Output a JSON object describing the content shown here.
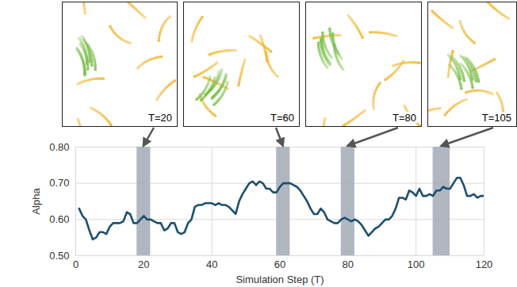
{
  "chart_data": {
    "type": "line",
    "x_label": "Simulation Step (T)",
    "y_label": "Alpha",
    "color": "#1d4f6e",
    "grid": true,
    "xlim": [
      0,
      120
    ],
    "xticks": [
      0,
      20,
      40,
      60,
      80,
      100,
      120
    ],
    "ylim": [
      0.5,
      0.8
    ],
    "yticks": [
      0.5,
      0.6,
      0.7,
      0.8
    ],
    "x": [
      1,
      2,
      3,
      4,
      5,
      6,
      7,
      8,
      9,
      10,
      11,
      12,
      13,
      14,
      15,
      16,
      17,
      18,
      19,
      20,
      21,
      22,
      23,
      24,
      25,
      26,
      27,
      28,
      29,
      30,
      31,
      32,
      33,
      34,
      35,
      36,
      37,
      38,
      39,
      40,
      41,
      42,
      43,
      44,
      45,
      46,
      47,
      48,
      49,
      50,
      51,
      52,
      53,
      54,
      55,
      56,
      57,
      58,
      59,
      60,
      61,
      62,
      63,
      64,
      65,
      66,
      67,
      68,
      69,
      70,
      71,
      72,
      73,
      74,
      75,
      76,
      77,
      78,
      79,
      80,
      81,
      82,
      83,
      84,
      85,
      86,
      87,
      88,
      89,
      90,
      91,
      92,
      93,
      94,
      95,
      96,
      97,
      98,
      99,
      100,
      101,
      102,
      103,
      104,
      105,
      106,
      107,
      108,
      109,
      110,
      111,
      112,
      113,
      114,
      115,
      116,
      117,
      118,
      119,
      120
    ],
    "values": [
      0.63,
      0.61,
      0.6,
      0.57,
      0.545,
      0.55,
      0.565,
      0.565,
      0.56,
      0.58,
      0.59,
      0.59,
      0.59,
      0.595,
      0.62,
      0.615,
      0.59,
      0.59,
      0.6,
      0.61,
      0.6,
      0.6,
      0.595,
      0.59,
      0.59,
      0.57,
      0.575,
      0.59,
      0.59,
      0.565,
      0.56,
      0.565,
      0.59,
      0.6,
      0.635,
      0.64,
      0.64,
      0.645,
      0.645,
      0.645,
      0.64,
      0.645,
      0.64,
      0.64,
      0.635,
      0.625,
      0.615,
      0.65,
      0.67,
      0.685,
      0.7,
      0.705,
      0.695,
      0.705,
      0.7,
      0.685,
      0.685,
      0.675,
      0.675,
      0.69,
      0.7,
      0.7,
      0.7,
      0.695,
      0.69,
      0.68,
      0.665,
      0.65,
      0.63,
      0.615,
      0.615,
      0.63,
      0.62,
      0.6,
      0.595,
      0.59,
      0.59,
      0.6,
      0.605,
      0.6,
      0.595,
      0.6,
      0.595,
      0.585,
      0.57,
      0.555,
      0.565,
      0.575,
      0.58,
      0.59,
      0.6,
      0.6,
      0.61,
      0.63,
      0.66,
      0.66,
      0.655,
      0.68,
      0.675,
      0.665,
      0.685,
      0.665,
      0.665,
      0.67,
      0.665,
      0.68,
      0.68,
      0.69,
      0.685,
      0.685,
      0.7,
      0.715,
      0.715,
      0.695,
      0.665,
      0.665,
      0.67,
      0.66,
      0.665,
      0.665
    ],
    "highlights": [
      {
        "start": 18,
        "end": 22,
        "label": "T=20"
      },
      {
        "start": 59,
        "end": 63,
        "label": "T=60"
      },
      {
        "start": 78,
        "end": 82,
        "label": "T=80"
      },
      {
        "start": 105,
        "end": 110,
        "label": "T=105"
      }
    ]
  }
}
